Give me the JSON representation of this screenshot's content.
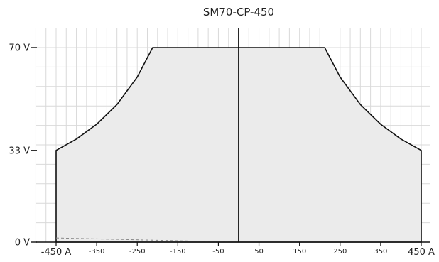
{
  "chart_data": {
    "type": "area",
    "title": "SM70-CP-450",
    "xlabel": "",
    "ylabel": "",
    "xlim": [
      -450,
      450
    ],
    "ylim": [
      0,
      70
    ],
    "grid": true,
    "fill_color": "#ebebeb",
    "line_color": "#111111",
    "grid_color": "#d9d9d9",
    "y_ticks": [
      {
        "value": 0,
        "label": "0 V"
      },
      {
        "value": 33,
        "label": "33 V"
      },
      {
        "value": 70,
        "label": "70 V"
      }
    ],
    "x_ticks": [
      {
        "value": -450,
        "label": "-450 A",
        "major": true
      },
      {
        "value": -350,
        "label": "-350",
        "major": false
      },
      {
        "value": -250,
        "label": "-250",
        "major": false
      },
      {
        "value": -150,
        "label": "-150",
        "major": false
      },
      {
        "value": -50,
        "label": "-50",
        "major": false
      },
      {
        "value": 50,
        "label": "50",
        "major": false
      },
      {
        "value": 150,
        "label": "150",
        "major": false
      },
      {
        "value": 250,
        "label": "250",
        "major": false
      },
      {
        "value": 350,
        "label": "350",
        "major": false
      },
      {
        "value": 450,
        "label": "450 A",
        "major": true
      }
    ],
    "series": [
      {
        "points": [
          {
            "x": -450,
            "y": 0
          },
          {
            "x": -450,
            "y": 33
          },
          {
            "x": -400,
            "y": 37.1
          },
          {
            "x": -350,
            "y": 42.4
          },
          {
            "x": -300,
            "y": 49.5
          },
          {
            "x": -250,
            "y": 59.4
          },
          {
            "x": -212,
            "y": 70
          },
          {
            "x": 212,
            "y": 70
          },
          {
            "x": 250,
            "y": 59.4
          },
          {
            "x": 300,
            "y": 49.5
          },
          {
            "x": 350,
            "y": 42.4
          },
          {
            "x": 400,
            "y": 37.1
          },
          {
            "x": 450,
            "y": 33
          },
          {
            "x": 450,
            "y": 0
          }
        ]
      }
    ],
    "dashed_line": [
      {
        "x": -450,
        "y": 1.5
      },
      {
        "x": 0,
        "y": 0
      }
    ]
  }
}
